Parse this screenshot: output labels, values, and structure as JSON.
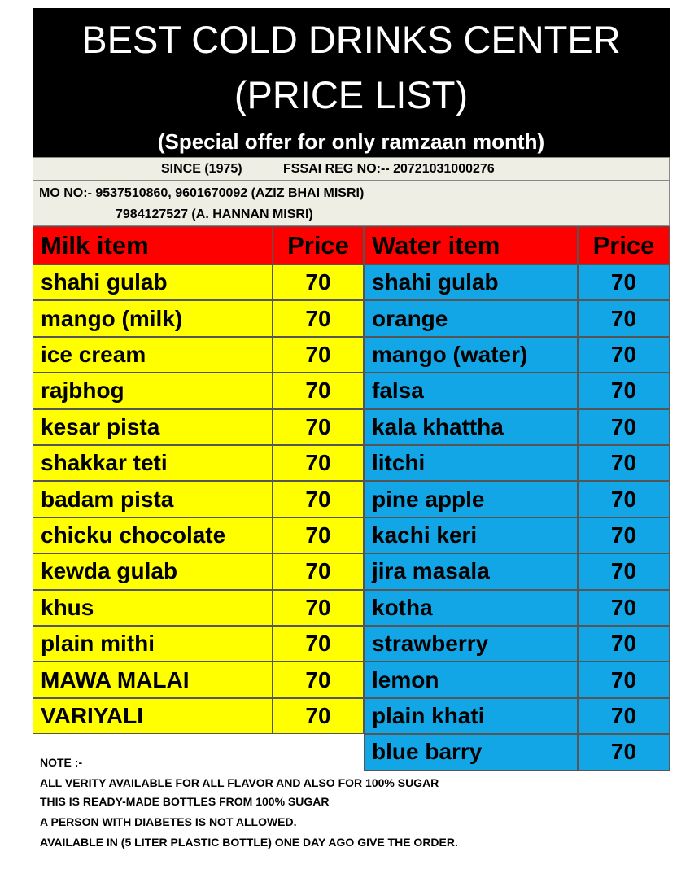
{
  "header": {
    "title_lines": [
      "BEST COLD DRINKS CENTER",
      "(PRICE LIST)"
    ],
    "subtitle": "(Special offer for only ramzaan month)"
  },
  "info": {
    "since": "SINCE (1975)",
    "fssai": "FSSAI REG NO:-- 20721031000276",
    "mobile_lines": [
      "MO NO:-  9537510860, 9601670092 (AZIZ BHAI MISRI)",
      "7984127527 (A. HANNAN MISRI)"
    ]
  },
  "table": {
    "headers": [
      "Milk item",
      "Price",
      "Water item",
      "Price"
    ],
    "milk_items": [
      [
        "shahi gulab",
        70
      ],
      [
        "mango (milk)",
        70
      ],
      [
        "ice cream",
        70
      ],
      [
        "rajbhog",
        70
      ],
      [
        "kesar pista",
        70
      ],
      [
        "shakkar teti",
        70
      ],
      [
        "badam pista",
        70
      ],
      [
        "chicku chocolate",
        70
      ],
      [
        "kewda gulab",
        70
      ],
      [
        "khus",
        70
      ],
      [
        "plain mithi",
        70
      ],
      [
        "MAWA MALAI",
        70
      ],
      [
        "VARIYALI",
        70
      ]
    ],
    "water_items": [
      [
        "shahi gulab",
        70
      ],
      [
        "orange",
        70
      ],
      [
        "mango (water)",
        70
      ],
      [
        "falsa",
        70
      ],
      [
        "kala khattha",
        70
      ],
      [
        "litchi",
        70
      ],
      [
        "pine apple",
        70
      ],
      [
        "kachi keri",
        70
      ],
      [
        "jira masala",
        70
      ],
      [
        "kotha",
        70
      ],
      [
        "strawberry",
        70
      ],
      [
        "lemon",
        70
      ],
      [
        "plain khati",
        70
      ],
      [
        "blue barry",
        70
      ]
    ]
  },
  "notes": {
    "heading": "NOTE :-",
    "lines": [
      "ALL VERITY AVAILABLE FOR ALL FLAVOR AND ALSO FOR 100% SUGAR",
      "THIS IS READY-MADE BOTTLES FROM 100% SUGAR",
      "A PERSON WITH DIABETES IS NOT ALLOWED.",
      "AVAILABLE IN (5 LITER PLASTIC BOTTLE) ONE DAY AGO GIVE THE ORDER."
    ]
  }
}
